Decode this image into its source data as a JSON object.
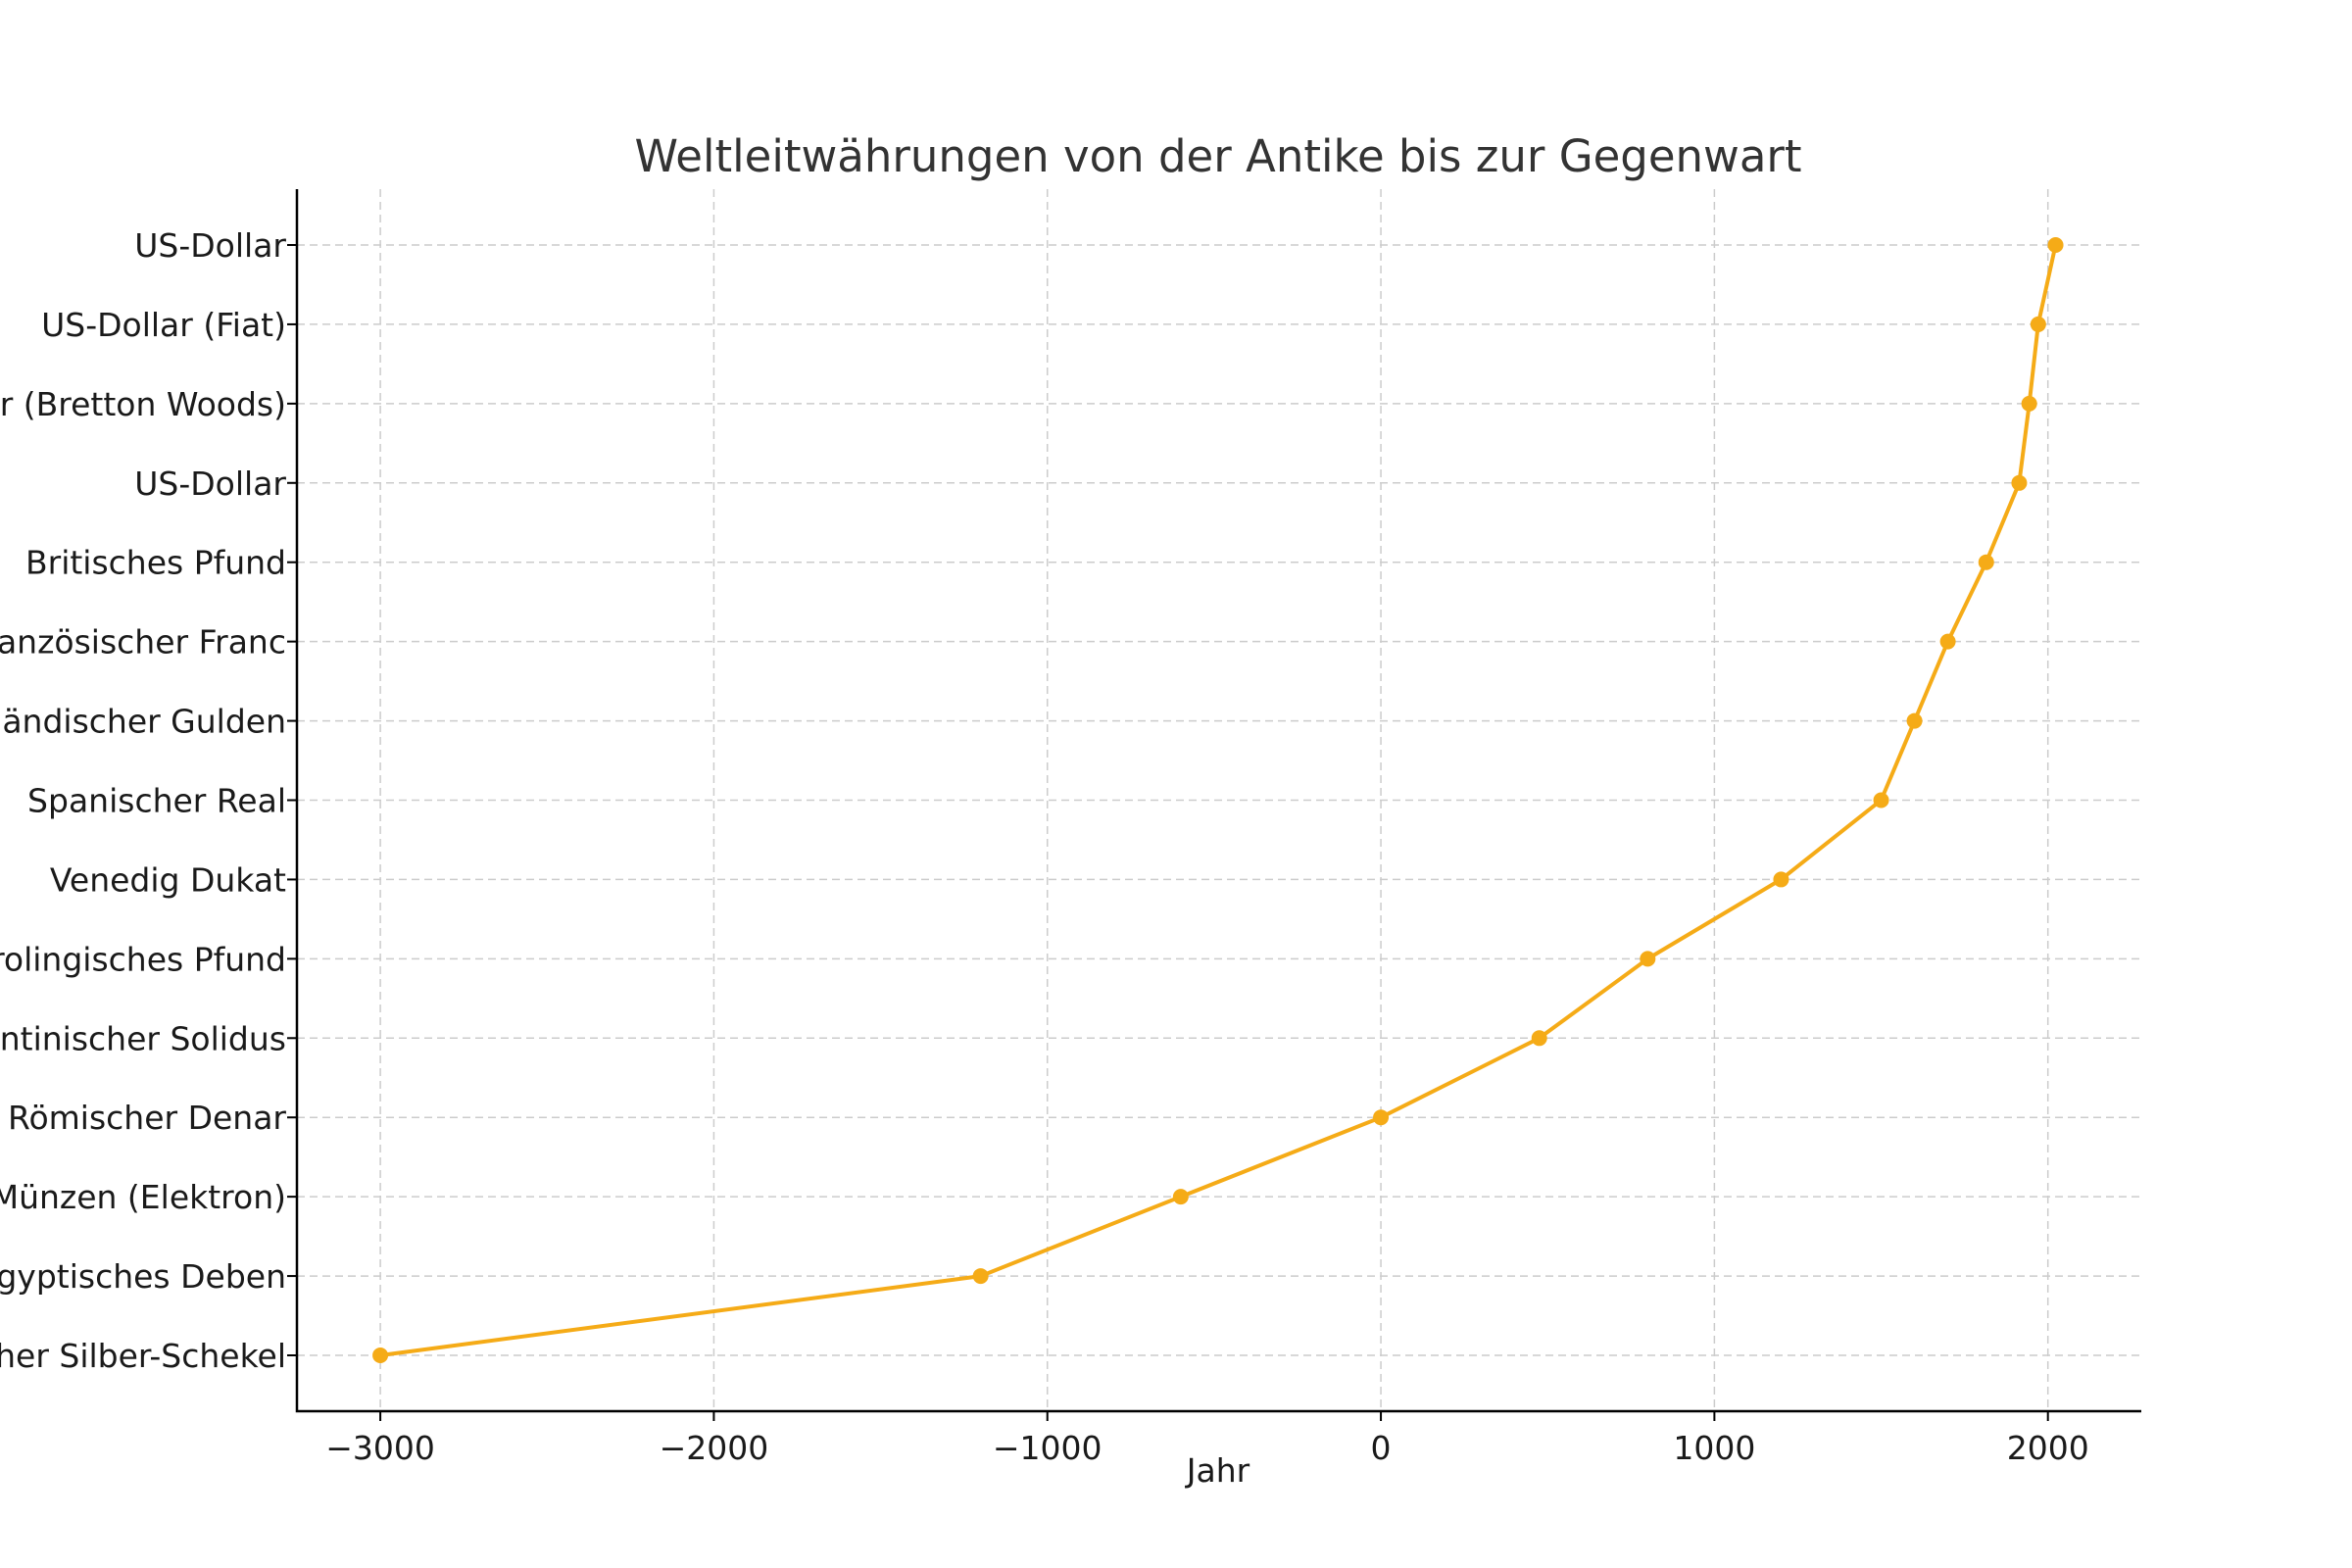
{
  "chart_data": {
    "type": "line",
    "title": "Weltleitwährungen von der Antike bis zur Gegenwart",
    "xlabel": "Jahr",
    "ylabel": "",
    "xlim": [
      -3250,
      2280
    ],
    "xticks": [
      -3000,
      -2000,
      -1000,
      0,
      1000,
      2000
    ],
    "xtick_labels": [
      "−3000",
      "−2000",
      "−1000",
      "0",
      "1000",
      "2000"
    ],
    "grid": true,
    "color": "#f5ab17",
    "categories": [
      "Mesopotamischer Silber-Schekel",
      "Ägyptisches Deben",
      "Lydische Münzen (Elektron)",
      "Römischer Denar",
      "Byzantinischer Solidus",
      "Karolingisches Pfund",
      "Venedig Dukat",
      "Spanischer Real",
      "Niederländischer Gulden",
      "Französischer Franc",
      "Britisches Pfund",
      "US-Dollar",
      "US-Dollar (Bretton Woods)",
      "US-Dollar (Fiat)",
      "US-Dollar"
    ],
    "x": [
      -3000,
      -1200,
      -600,
      0,
      475,
      800,
      1200,
      1500,
      1600,
      1700,
      1815,
      1914,
      1944,
      1971,
      2023
    ]
  }
}
